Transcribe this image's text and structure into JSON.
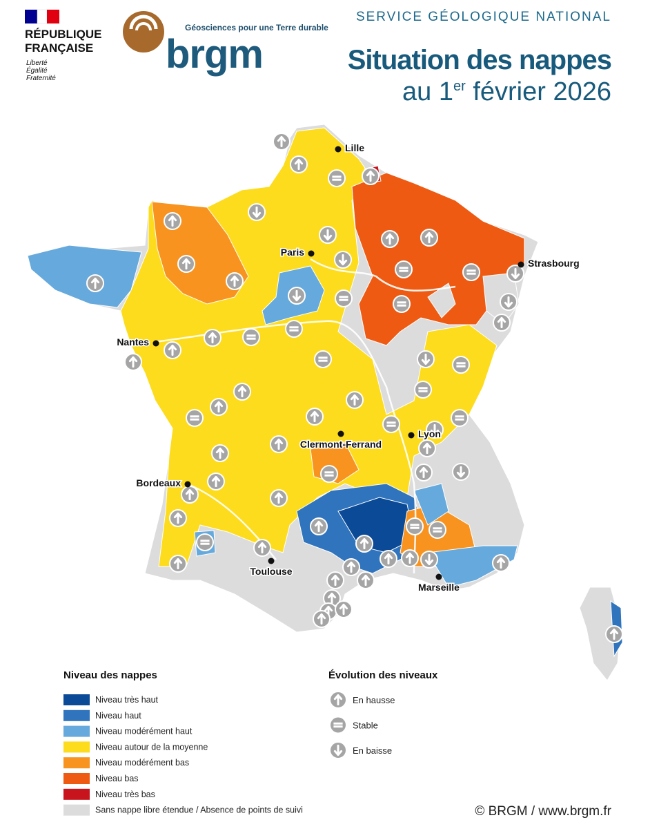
{
  "header": {
    "republique": [
      "RÉPUBLIQUE",
      "FRANÇAISE"
    ],
    "motto": [
      "Liberté",
      "Égalité",
      "Fraternité"
    ],
    "tagline": "Géosciences pour une Terre durable",
    "logo": "brgm",
    "service": "SERVICE GÉOLOGIQUE NATIONAL",
    "title": "Situation des nappes",
    "subtitle_start": "au 1",
    "subtitle_sup": "er",
    "subtitle_end": " février 2026"
  },
  "cities": [
    "Lille",
    "Paris",
    "Strasbourg",
    "Nantes",
    "Lyon",
    "Clermont-Ferrand",
    "Bordeaux",
    "Toulouse",
    "Marseille"
  ],
  "legend": {
    "title": "Niveau des nappes",
    "items": [
      {
        "label": "Niveau très haut",
        "color": "#0b4a96"
      },
      {
        "label": "Niveau haut",
        "color": "#2f74bd"
      },
      {
        "label": "Niveau modérément haut",
        "color": "#66a9dc"
      },
      {
        "label": "Niveau autour de la moyenne",
        "color": "#fcdc1c"
      },
      {
        "label": "Niveau modérément bas",
        "color": "#f7931e"
      },
      {
        "label": "Niveau bas",
        "color": "#ee5a12"
      },
      {
        "label": "Niveau très bas",
        "color": "#c8141c"
      },
      {
        "label": "Sans nappe libre étendue / Absence de points de suivi",
        "color": "#dcdcdc"
      }
    ]
  },
  "evolution": {
    "title": "Évolution des niveaux",
    "items": [
      "En hausse",
      "Stable",
      "En baisse"
    ]
  },
  "footer": "© BRGM / www.brgm.fr"
}
